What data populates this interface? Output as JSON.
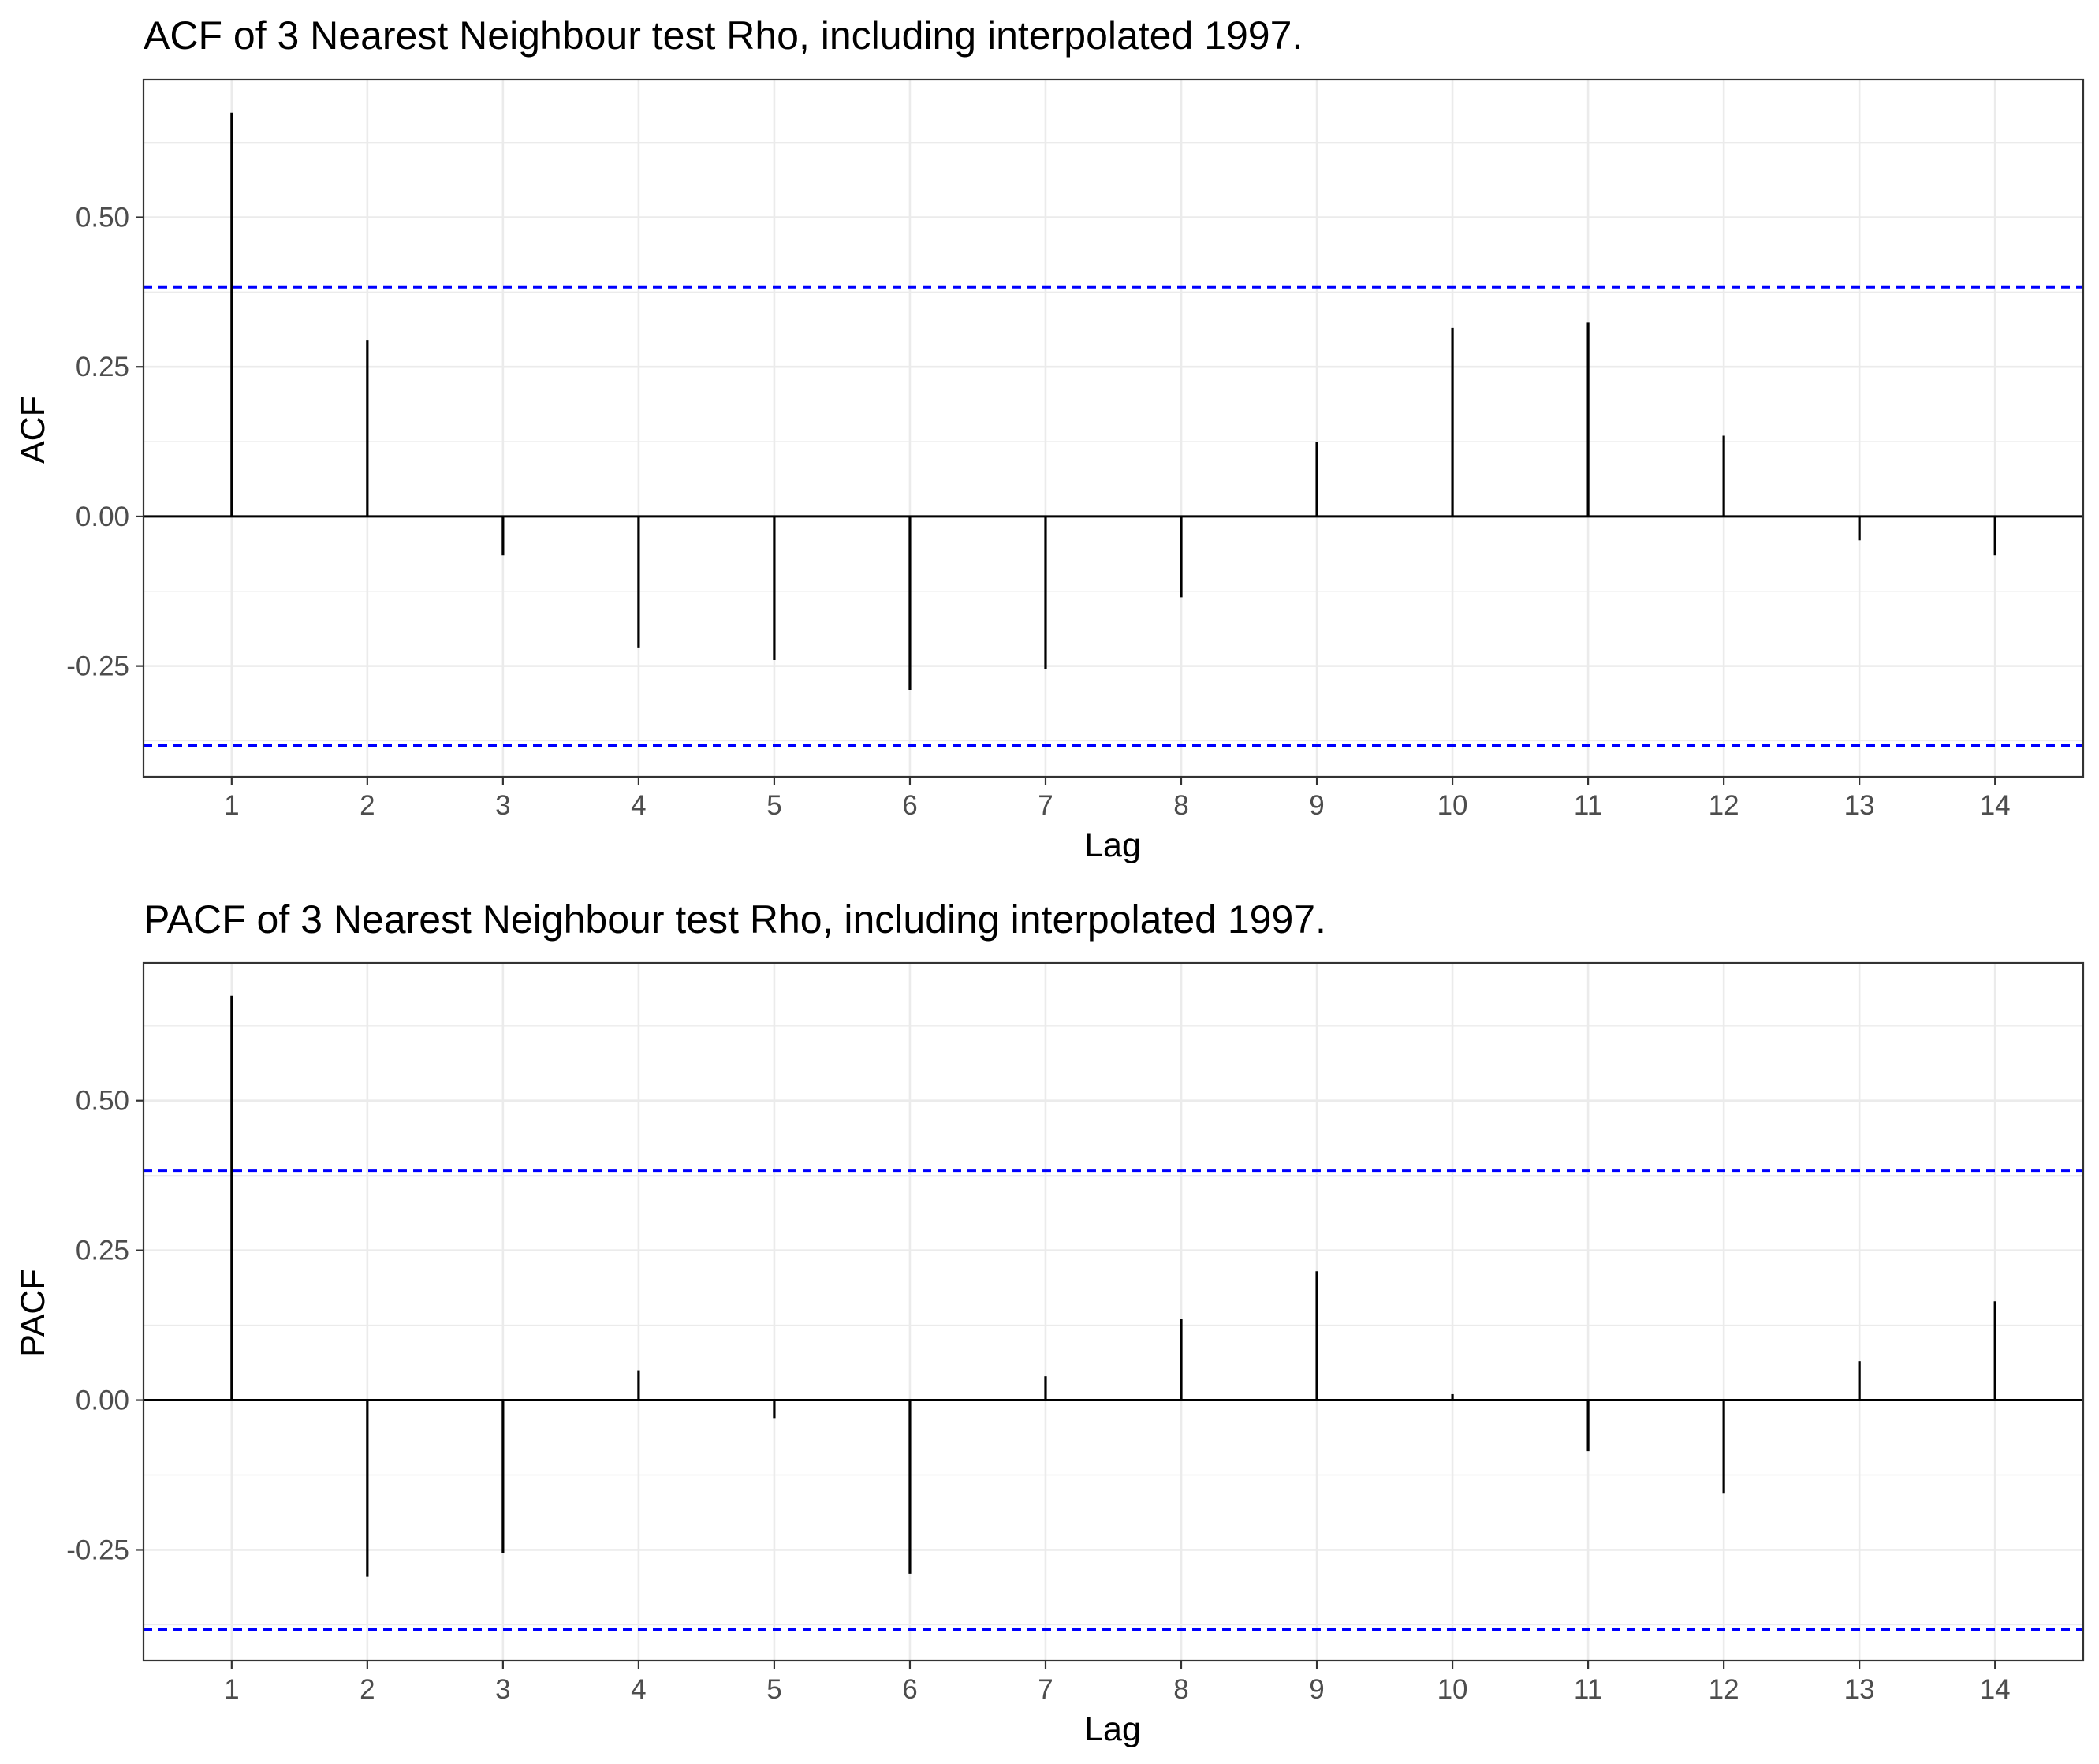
{
  "chart_data": [
    {
      "type": "bar",
      "title": "ACF of 3 Nearest Neighbour test Rho, including interpolated 1997.",
      "xlabel": "Lag",
      "ylabel": "ACF",
      "x": [
        1,
        2,
        3,
        4,
        5,
        6,
        7,
        8,
        9,
        10,
        11,
        12,
        13,
        14
      ],
      "values": [
        0.675,
        0.295,
        -0.065,
        -0.22,
        -0.24,
        -0.29,
        -0.255,
        -0.135,
        0.125,
        0.315,
        0.325,
        0.135,
        -0.04,
        -0.065
      ],
      "confidence_bound": 0.383,
      "xlim": [
        0.35,
        14.65
      ],
      "ylim": [
        -0.435,
        0.73
      ],
      "yticks": [
        0.5,
        0.25,
        0.0,
        -0.25
      ],
      "ytick_labels": [
        "0.50",
        "0.25",
        "0.00",
        "-0.25"
      ],
      "grid": true,
      "colors": {
        "bars": "#000000",
        "bound": "#0000ff",
        "grid": "#ebebeb",
        "panel_border": "#333333"
      }
    },
    {
      "type": "bar",
      "title": "PACF of 3 Nearest Neighbour test Rho, including interpolated 1997.",
      "xlabel": "Lag",
      "ylabel": "PACF",
      "x": [
        1,
        2,
        3,
        4,
        5,
        6,
        7,
        8,
        9,
        10,
        11,
        12,
        13,
        14
      ],
      "values": [
        0.675,
        -0.295,
        -0.255,
        0.05,
        -0.03,
        -0.29,
        0.04,
        0.135,
        0.215,
        0.01,
        -0.085,
        -0.155,
        0.065,
        0.165
      ],
      "confidence_bound": 0.383,
      "xlim": [
        0.35,
        14.65
      ],
      "ylim": [
        -0.435,
        0.73
      ],
      "yticks": [
        0.5,
        0.25,
        0.0,
        -0.25
      ],
      "ytick_labels": [
        "0.50",
        "0.25",
        "0.00",
        "-0.25"
      ],
      "grid": true,
      "colors": {
        "bars": "#000000",
        "bound": "#0000ff",
        "grid": "#ebebeb",
        "panel_border": "#333333"
      }
    }
  ]
}
